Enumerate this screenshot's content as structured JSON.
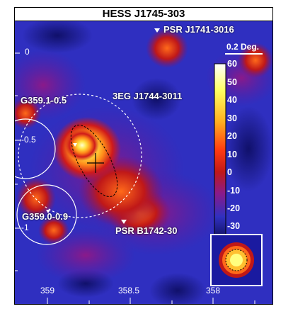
{
  "title": "HESS J1745-303",
  "labels": {
    "psr_top": "PSR J1741-3016",
    "egret": "3EG J1744-3011",
    "snr1": "G359.1-0.5",
    "snr2": "G359.0-0.9",
    "psr_bottom": "PSR B1742-30"
  },
  "scale_bar": "0.2 Deg.",
  "colorbar_ticks": [
    "60",
    "50",
    "40",
    "30",
    "20",
    "10",
    "0",
    "-10",
    "-20",
    "-30"
  ],
  "x_ticks": [
    "359",
    "358.5",
    "358"
  ],
  "y_ticks": [
    "0",
    "-0.5",
    "-1"
  ],
  "colors": {
    "background": "#2f2fc0",
    "hot": "#ffff80",
    "warm": "#ff6a1a",
    "mid": "#c01818",
    "cool": "#1a1a8a"
  }
}
